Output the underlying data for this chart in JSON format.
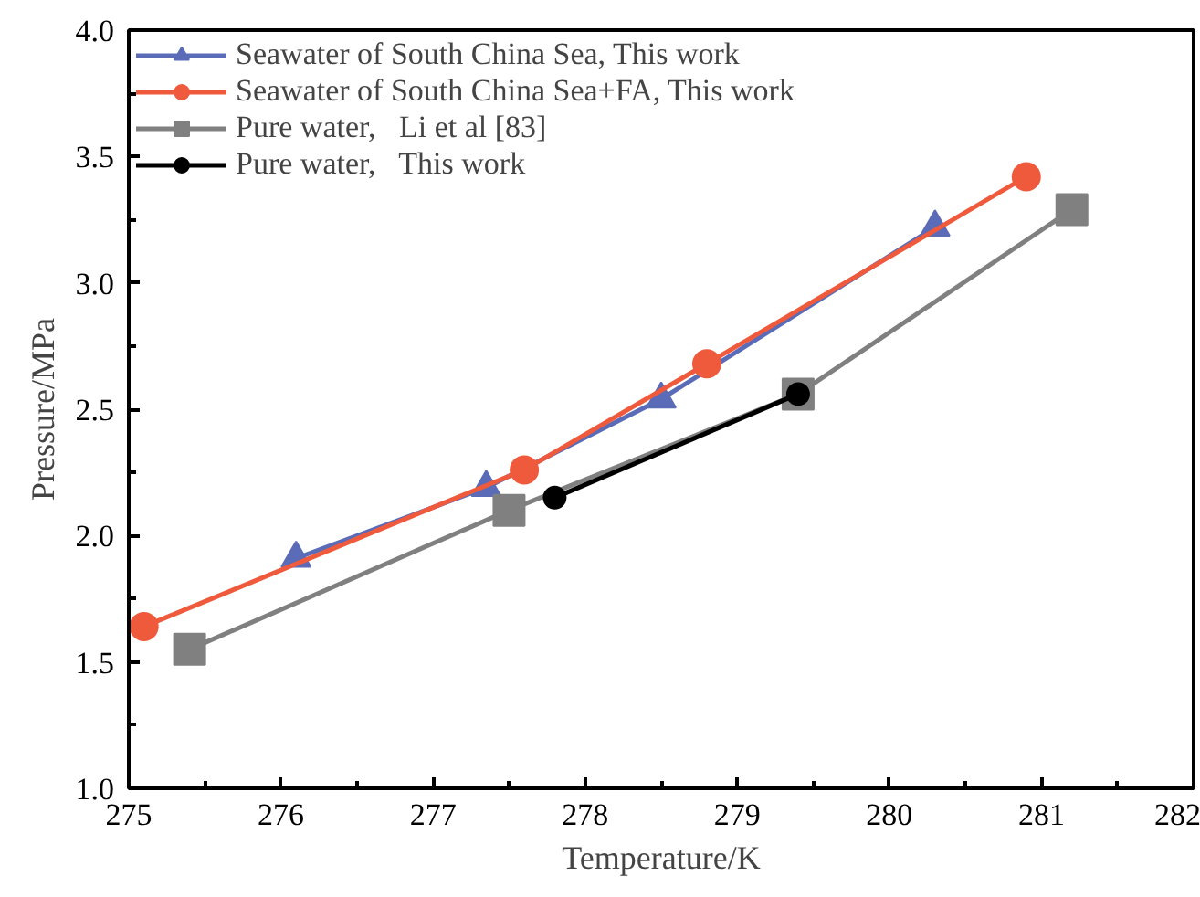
{
  "chart_data": {
    "type": "line",
    "xlabel": "Temperature/K",
    "ylabel": "Pressure/MPa",
    "xlim": [
      275,
      282
    ],
    "ylim": [
      1.0,
      4.0
    ],
    "xticks": [
      275,
      276,
      277,
      278,
      279,
      280,
      281,
      282
    ],
    "yticks": [
      {
        "value": 1.0,
        "label": "1.0"
      },
      {
        "value": 1.5,
        "label": "1.5"
      },
      {
        "value": 2.0,
        "label": "2.0"
      },
      {
        "value": 2.5,
        "label": "2.5"
      },
      {
        "value": 3.0,
        "label": "3.0"
      },
      {
        "value": 3.5,
        "label": "3.5"
      },
      {
        "value": 4.0,
        "label": "4.0"
      }
    ],
    "grid": false,
    "legend": "top left",
    "line_style": "solid",
    "series": [
      {
        "name": "Seawater of South China Sea, This work",
        "color": "#5a6bb8",
        "marker": "triangle",
        "x": [
          276.1,
          277.35,
          278.5,
          280.3
        ],
        "values": [
          1.91,
          2.19,
          2.54,
          3.22
        ]
      },
      {
        "name": "Seawater of South China Sea+FA, This work",
        "color": "#f05a3c",
        "marker": "circle",
        "x": [
          275.1,
          277.6,
          278.8,
          280.9
        ],
        "values": [
          1.64,
          2.26,
          2.68,
          3.42
        ]
      },
      {
        "name": "Pure water,   Li et al [83]",
        "color": "#808080",
        "marker": "square",
        "x": [
          275.4,
          277.5,
          279.4,
          281.2
        ],
        "values": [
          1.55,
          2.1,
          2.56,
          3.29
        ]
      },
      {
        "name": "Pure water,   This work",
        "color": "#000000",
        "marker": "circle",
        "x": [
          277.8,
          279.4
        ],
        "values": [
          2.15,
          2.56
        ]
      }
    ]
  }
}
